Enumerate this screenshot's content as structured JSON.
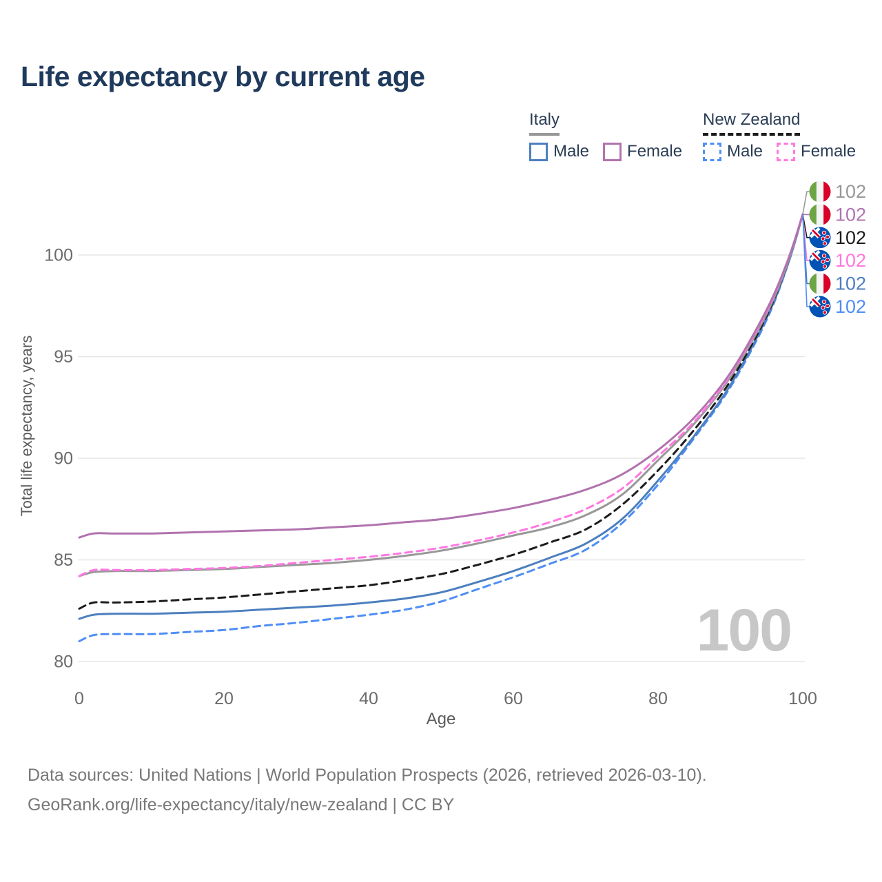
{
  "title": "Life expectancy by current age",
  "legend": {
    "groups": [
      {
        "label": "Italy",
        "line_style": "solid",
        "underline_color": "#989898",
        "items": [
          {
            "label": "Male",
            "color": "#4c7fbf",
            "style": "solid"
          },
          {
            "label": "Female",
            "color": "#b173ae",
            "style": "solid"
          }
        ]
      },
      {
        "label": "New Zealand",
        "line_style": "dashed",
        "underline_color": "#1c1c1c",
        "items": [
          {
            "label": "Male",
            "color": "#4f8ef5",
            "style": "dashed"
          },
          {
            "label": "Female",
            "color": "#ff77e1",
            "style": "dashed"
          }
        ]
      }
    ]
  },
  "chart_data": {
    "type": "line",
    "title": "Life expectancy by current age",
    "xlabel": "Age",
    "ylabel": "Total life expectancy, years",
    "xlim": [
      0,
      100
    ],
    "ylim": [
      79.5,
      103.5
    ],
    "xticks": [
      0,
      20,
      40,
      60,
      80,
      100
    ],
    "yticks": [
      80,
      85,
      90,
      95,
      100
    ],
    "grid": "horizontal-only",
    "legend_position": "top-right",
    "x": [
      0,
      2,
      5,
      10,
      15,
      20,
      25,
      30,
      35,
      40,
      45,
      50,
      55,
      60,
      65,
      70,
      75,
      80,
      85,
      90,
      95,
      98,
      100
    ],
    "series": [
      {
        "key": "nz-male",
        "name": "New Zealand Male",
        "country": "New Zealand",
        "sex": "Male",
        "color": "#4f8ef5",
        "dash": true,
        "end_label": "102",
        "values": [
          81.0,
          81.3,
          81.35,
          81.35,
          81.45,
          81.55,
          81.75,
          81.9,
          82.1,
          82.3,
          82.55,
          82.95,
          83.55,
          84.15,
          84.8,
          85.5,
          86.8,
          88.7,
          91.0,
          93.5,
          96.8,
          99.6,
          102
        ]
      },
      {
        "key": "it-male",
        "name": "Italy Male",
        "country": "Italy",
        "sex": "Male",
        "color": "#4c7fbf",
        "dash": false,
        "end_label": "102",
        "values": [
          82.1,
          82.3,
          82.35,
          82.35,
          82.4,
          82.45,
          82.55,
          82.65,
          82.75,
          82.9,
          83.1,
          83.4,
          83.9,
          84.45,
          85.1,
          85.8,
          87.0,
          88.9,
          91.1,
          93.6,
          96.9,
          99.6,
          102
        ]
      },
      {
        "key": "nz-both",
        "name": "New Zealand Both sexes",
        "country": "New Zealand",
        "sex": "Both",
        "color": "#1c1c1c",
        "dash": true,
        "end_label": "102",
        "values": [
          82.6,
          82.9,
          82.9,
          82.95,
          83.05,
          83.15,
          83.3,
          83.45,
          83.6,
          83.75,
          84.0,
          84.3,
          84.75,
          85.25,
          85.85,
          86.5,
          87.7,
          89.4,
          91.4,
          93.8,
          97.0,
          99.7,
          102
        ]
      },
      {
        "key": "it-both",
        "name": "Italy Both sexes",
        "country": "Italy",
        "sex": "Both",
        "color": "#989898",
        "dash": false,
        "end_label": "102",
        "values": [
          84.2,
          84.4,
          84.45,
          84.45,
          84.5,
          84.55,
          84.65,
          84.75,
          84.85,
          85.0,
          85.2,
          85.45,
          85.8,
          86.2,
          86.6,
          87.2,
          88.2,
          89.9,
          91.7,
          94.0,
          97.1,
          99.7,
          102
        ]
      },
      {
        "key": "nz-female",
        "name": "New Zealand Female",
        "country": "New Zealand",
        "sex": "Female",
        "color": "#ff77e1",
        "dash": true,
        "end_label": "102",
        "values": [
          84.2,
          84.5,
          84.5,
          84.5,
          84.55,
          84.6,
          84.7,
          84.85,
          85.0,
          85.15,
          85.35,
          85.6,
          85.95,
          86.35,
          86.85,
          87.5,
          88.5,
          90.1,
          91.8,
          94.1,
          97.2,
          99.8,
          102
        ]
      },
      {
        "key": "it-female",
        "name": "Italy Female",
        "country": "Italy",
        "sex": "Female",
        "color": "#b173ae",
        "dash": false,
        "end_label": "102",
        "values": [
          86.1,
          86.3,
          86.3,
          86.3,
          86.35,
          86.4,
          86.45,
          86.5,
          86.6,
          86.7,
          86.85,
          87.0,
          87.25,
          87.55,
          87.95,
          88.45,
          89.2,
          90.4,
          92.0,
          94.2,
          97.3,
          99.8,
          102
        ]
      }
    ],
    "end_labels_top_to_bottom": [
      "it-both",
      "it-female",
      "nz-both",
      "nz-female",
      "it-male",
      "nz-male"
    ]
  },
  "annotations": {
    "age_counter": "100"
  },
  "footer": {
    "line1": "Data sources: United Nations | World Population Prospects (2026, retrieved 2026-03-10).",
    "line2": "GeoRank.org/life-expectancy/italy/new-zealand | CC BY"
  },
  "flag_colors": {
    "italy_green": "#6da544",
    "flag_red": "#d80027",
    "nz_blue": "#0052b4"
  }
}
